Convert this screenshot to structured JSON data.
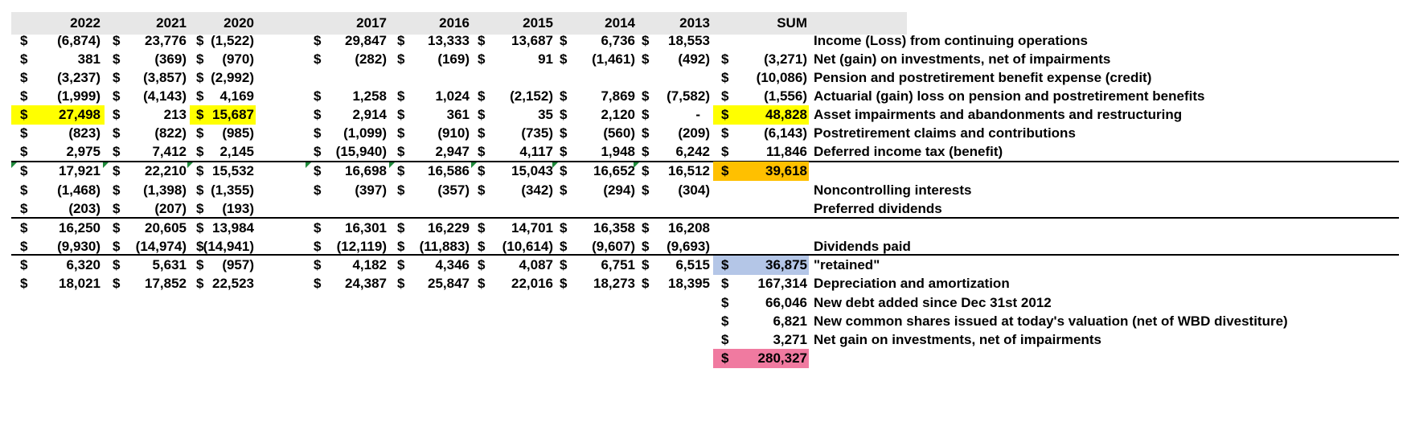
{
  "columns": [
    "2022",
    "2021",
    "2020",
    "2017",
    "2016",
    "2015",
    "2014",
    "2013",
    "SUM"
  ],
  "rows": [
    {
      "values": [
        "(6,874)",
        "23,776",
        "(1,522)",
        "29,847",
        "13,333",
        "13,687",
        "6,736",
        "18,553",
        ""
      ],
      "label": "Income (Loss) from continuing operations"
    },
    {
      "values": [
        "381",
        "(369)",
        "(970)",
        "(282)",
        "(169)",
        "91",
        "(1,461)",
        "(492)",
        "(3,271)"
      ],
      "label": "Net (gain) on investments, net of impairments"
    },
    {
      "values": [
        "(3,237)",
        "(3,857)",
        "(2,992)",
        "",
        "",
        "",
        "",
        "",
        "(10,086)"
      ],
      "label": "Pension and postretirement benefit expense (credit)"
    },
    {
      "values": [
        "(1,999)",
        "(4,143)",
        "4,169",
        "1,258",
        "1,024",
        "(2,152)",
        "7,869",
        "(7,582)",
        "(1,556)"
      ],
      "label": "Actuarial (gain) loss on pension and postretirement benefits"
    },
    {
      "values": [
        "27,498",
        "213",
        "15,687",
        "2,914",
        "361",
        "35",
        "2,120",
        "-",
        "48,828"
      ],
      "label": "Asset impairments and abandonments and restructuring"
    },
    {
      "values": [
        "(823)",
        "(822)",
        "(985)",
        "(1,099)",
        "(910)",
        "(735)",
        "(560)",
        "(209)",
        "(6,143)"
      ],
      "label": "Postretirement claims and contributions"
    },
    {
      "values": [
        "2,975",
        "7,412",
        "2,145",
        "(15,940)",
        "2,947",
        "4,117",
        "1,948",
        "6,242",
        "11,846"
      ],
      "label": "Deferred income tax (benefit)"
    },
    {
      "values": [
        "17,921",
        "22,210",
        "15,532",
        "16,698",
        "16,586",
        "15,043",
        "16,652",
        "16,512",
        "39,618"
      ],
      "label": ""
    },
    {
      "values": [
        "(1,468)",
        "(1,398)",
        "(1,355)",
        "(397)",
        "(357)",
        "(342)",
        "(294)",
        "(304)",
        ""
      ],
      "label": "Noncontrolling interests"
    },
    {
      "values": [
        "(203)",
        "(207)",
        "(193)",
        "",
        "",
        "",
        "",
        "",
        ""
      ],
      "label": "Preferred dividends"
    },
    {
      "values": [
        "16,250",
        "20,605",
        "13,984",
        "16,301",
        "16,229",
        "14,701",
        "16,358",
        "16,208",
        ""
      ],
      "label": ""
    },
    {
      "values": [
        "(9,930)",
        "(14,974)",
        "(14,941)",
        "(12,119)",
        "(11,883)",
        "(10,614)",
        "(9,607)",
        "(9,693)",
        ""
      ],
      "label": "Dividends paid"
    },
    {
      "values": [
        "6,320",
        "5,631",
        "(957)",
        "4,182",
        "4,346",
        "4,087",
        "6,751",
        "6,515",
        "36,875"
      ],
      "label": "\"retained\""
    },
    {
      "values": [
        "18,021",
        "17,852",
        "22,523",
        "24,387",
        "25,847",
        "22,016",
        "18,273",
        "18,395",
        "167,314"
      ],
      "label": "Depreciation and amortization"
    },
    {
      "values": [
        "",
        "",
        "",
        "",
        "",
        "",
        "",
        "",
        "66,046"
      ],
      "label": "New debt added since Dec 31st 2012"
    },
    {
      "values": [
        "",
        "",
        "",
        "",
        "",
        "",
        "",
        "",
        "6,821"
      ],
      "label": "New common shares issued at today's valuation (net of WBD divestiture)"
    },
    {
      "values": [
        "",
        "",
        "",
        "",
        "",
        "",
        "",
        "",
        "3,271"
      ],
      "label": "Net gain on investments, net of impairments"
    },
    {
      "values": [
        "",
        "",
        "",
        "",
        "",
        "",
        "",
        "",
        "280,327"
      ],
      "label": ""
    }
  ],
  "dollar_sign": "$",
  "highlights": {
    "yellow": "#ffff00",
    "orange": "#ffc000",
    "blue": "#b4c6e7",
    "pink": "#f07aa0"
  }
}
